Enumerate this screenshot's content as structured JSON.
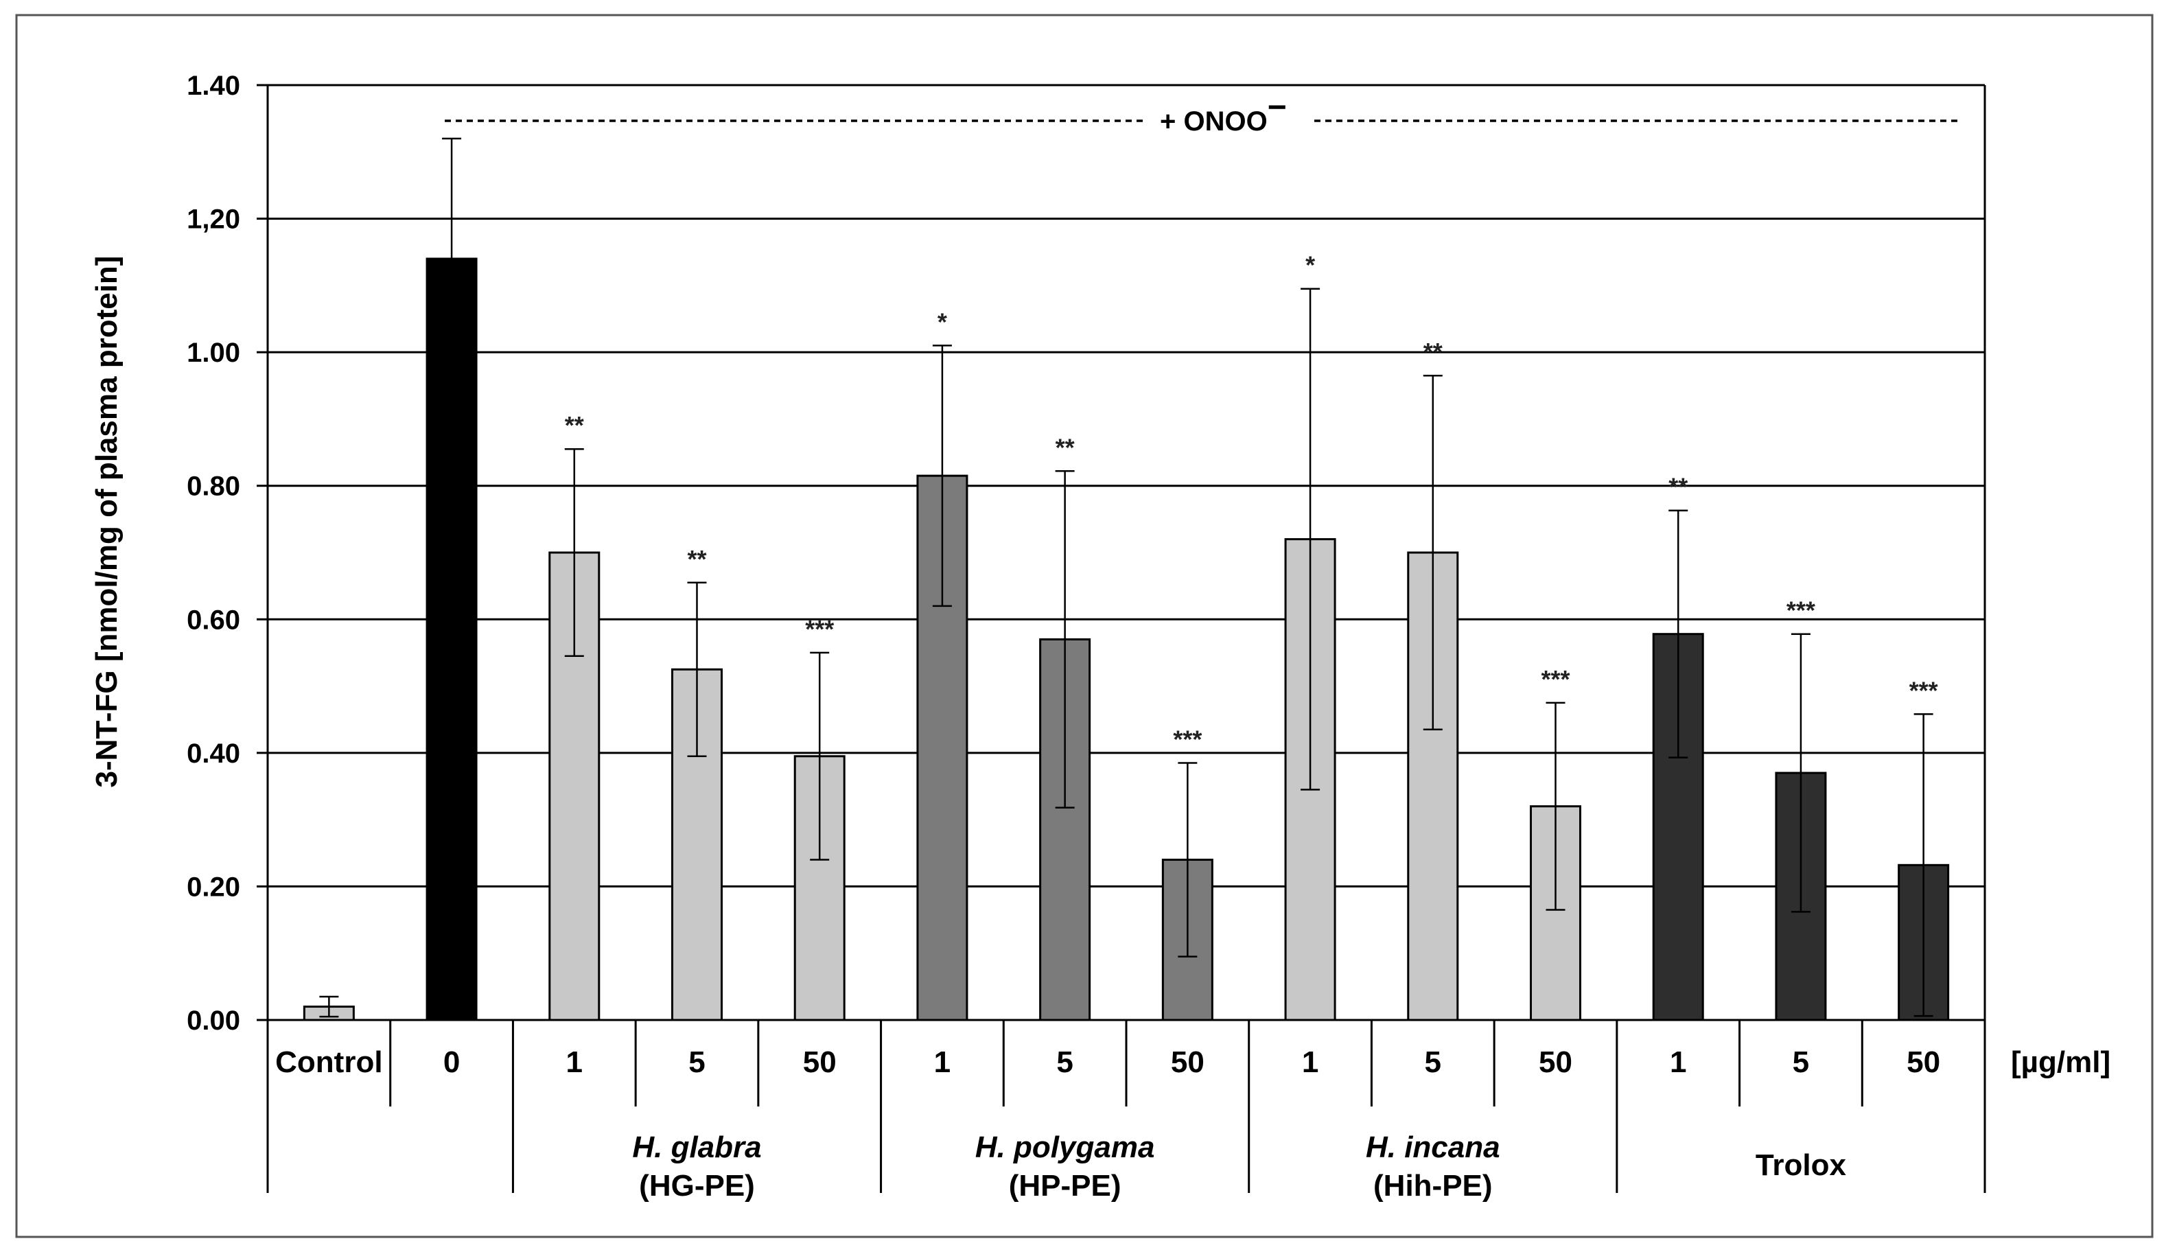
{
  "chart_data": {
    "type": "bar",
    "ylabel": "3-NT-FG [nmol/mg of plasma protein]",
    "ylim": [
      0,
      1.4
    ],
    "yticks": [
      0,
      0.2,
      0.4,
      0.6,
      0.8,
      1.0,
      1.2,
      1.4
    ],
    "ytick_labels": [
      "0.00",
      "0.20",
      "0.40",
      "0.60",
      "0.80",
      "1.00",
      "1,20",
      "1.40"
    ],
    "grid": true,
    "annotation": "+ ONOO",
    "annotation_superscript": "−",
    "unit_label": "[µg/ml]",
    "categories": [
      "Control",
      "0",
      "1",
      "5",
      "50",
      "1",
      "5",
      "50",
      "1",
      "5",
      "50",
      "1",
      "5",
      "50"
    ],
    "values": [
      0.02,
      1.14,
      0.7,
      0.525,
      0.395,
      0.815,
      0.57,
      0.24,
      0.72,
      0.7,
      0.32,
      0.578,
      0.37,
      0.232
    ],
    "errors": [
      0.015,
      0.18,
      0.155,
      0.13,
      0.155,
      0.195,
      0.252,
      0.145,
      0.375,
      0.265,
      0.155,
      0.185,
      0.208,
      0.226
    ],
    "significance": [
      "",
      "",
      "**",
      "**",
      "***",
      "*",
      "**",
      "***",
      "*",
      "**",
      "***",
      "**",
      "***",
      "***"
    ],
    "bar_colors": [
      "#c8c8c8",
      "#000000",
      "#c8c8c8",
      "#c8c8c8",
      "#c8c8c8",
      "#7b7b7b",
      "#7b7b7b",
      "#7b7b7b",
      "#c8c8c8",
      "#c8c8c8",
      "#c8c8c8",
      "#2e2e2e",
      "#2e2e2e",
      "#2e2e2e"
    ],
    "groups": [
      {
        "name": "H. glabra",
        "sub": "(HG-PE)",
        "italic": true
      },
      {
        "name": "H. polygama",
        "sub": "(HP-PE)",
        "italic": true
      },
      {
        "name": "H. incana",
        "sub": "(Hih-PE)",
        "italic": true
      },
      {
        "name": "Trolox",
        "sub": "",
        "italic": false
      }
    ]
  }
}
